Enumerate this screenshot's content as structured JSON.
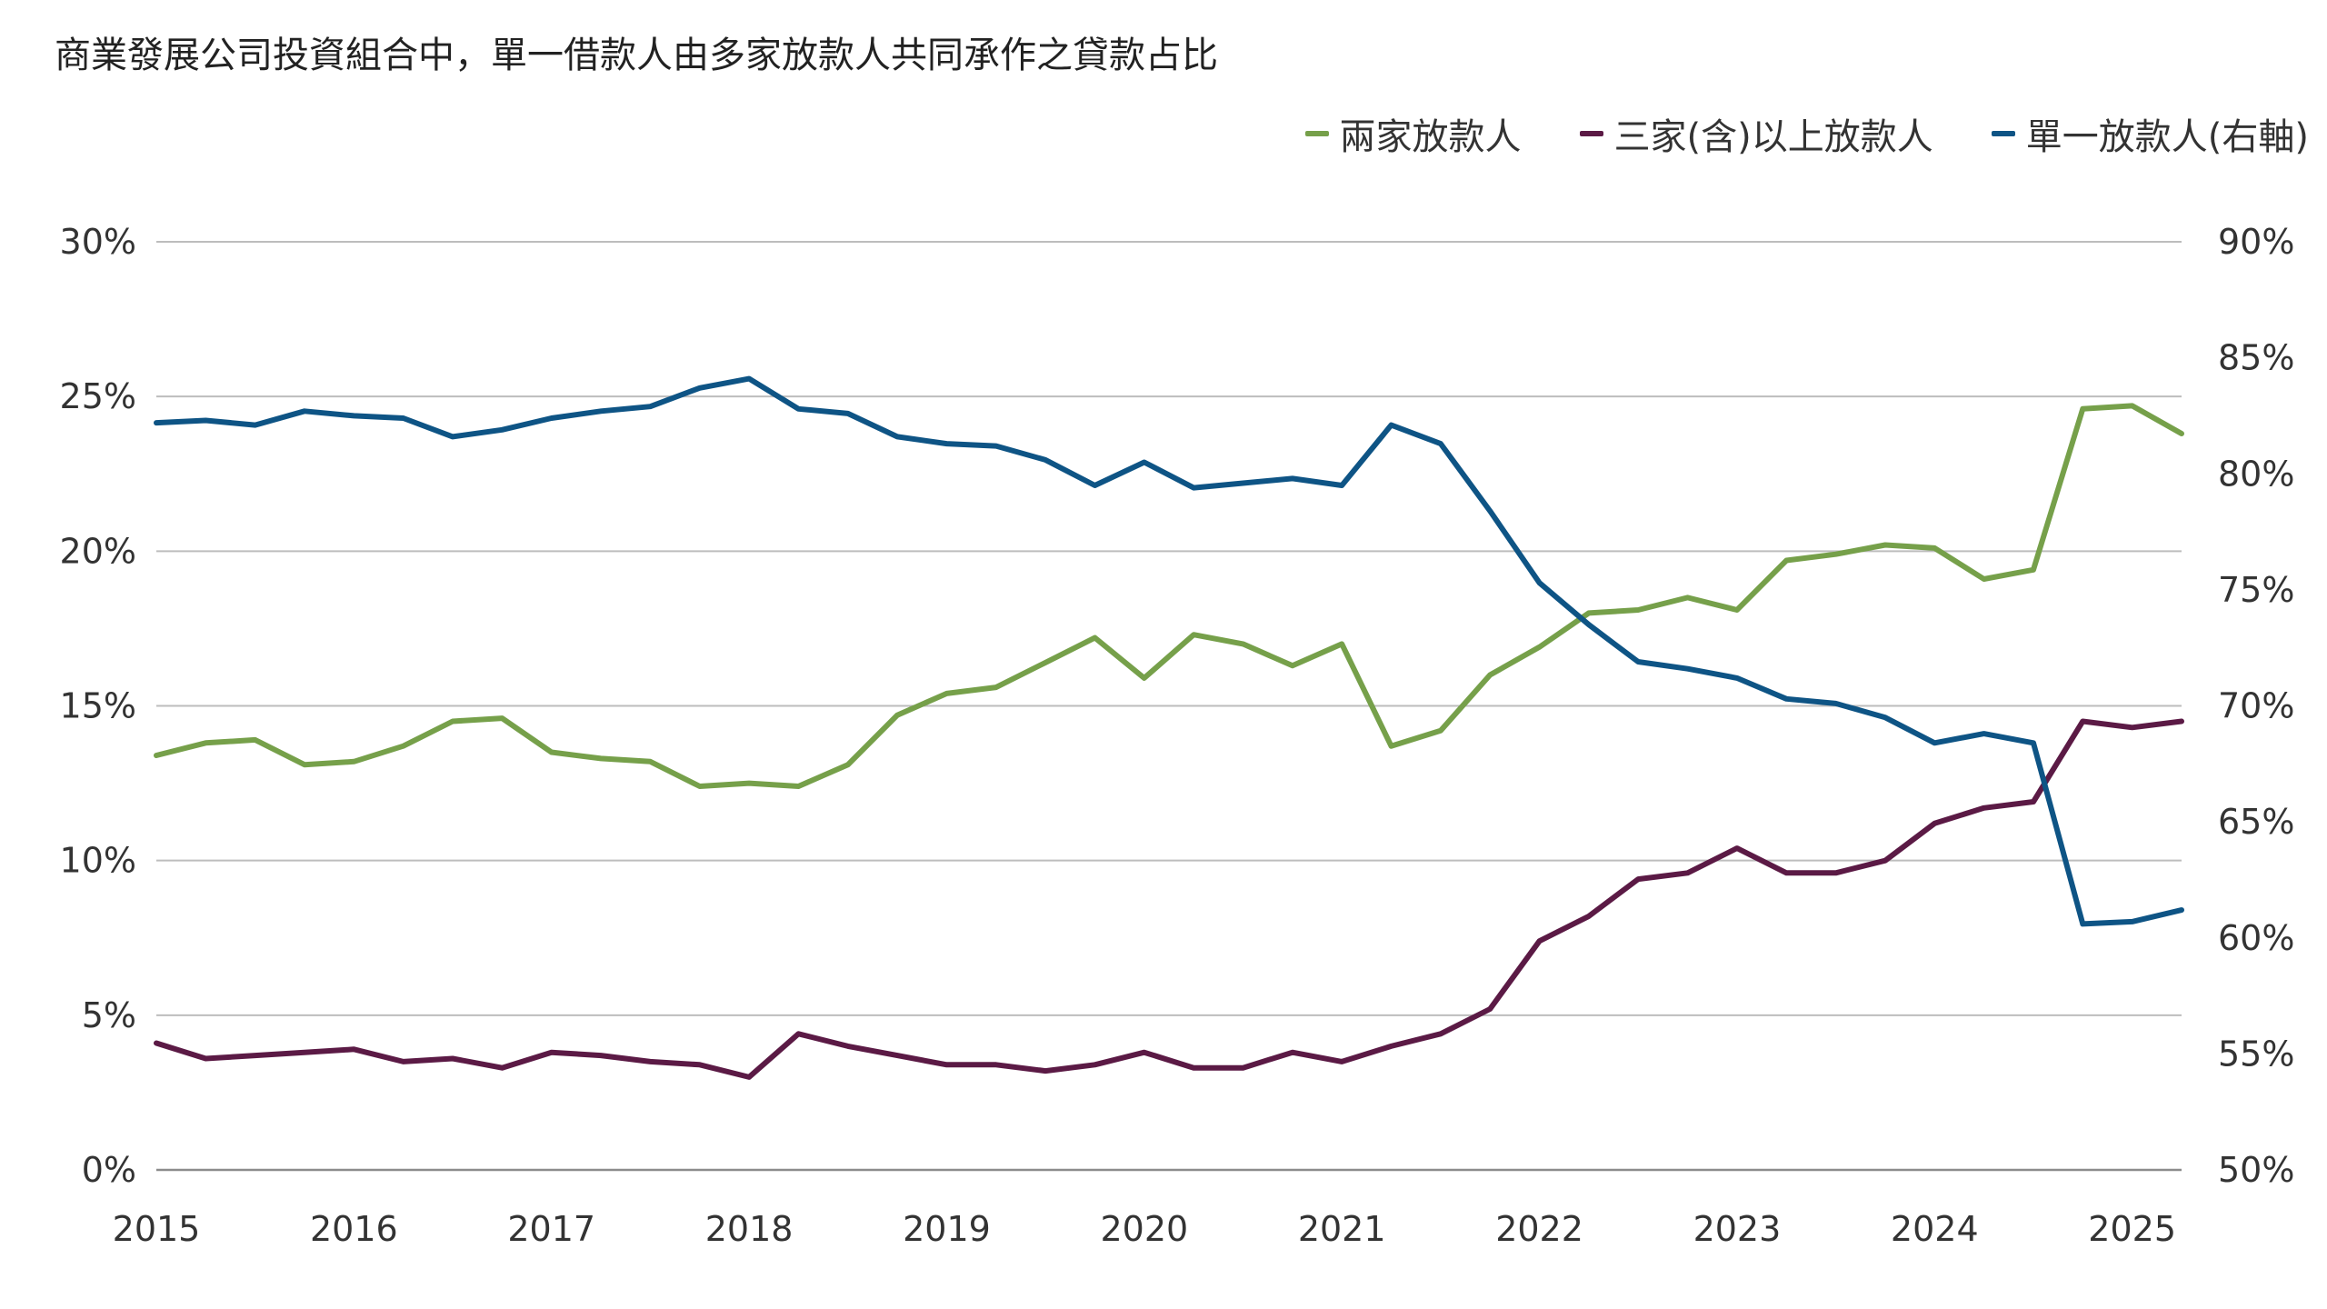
{
  "chart_data": {
    "type": "line",
    "title": "商業發展公司投資組合中，單一借款人由多家放款人共同承作之貸款占比",
    "y_left": {
      "ticks": [
        "0%",
        "5%",
        "10%",
        "15%",
        "20%",
        "25%",
        "30%"
      ],
      "range": [
        0,
        30
      ]
    },
    "y_right": {
      "ticks": [
        "50%",
        "55%",
        "60%",
        "65%",
        "70%",
        "75%",
        "80%",
        "85%",
        "90%"
      ],
      "range": [
        50,
        90
      ]
    },
    "x_ticks": [
      "2015",
      "2016",
      "2017",
      "2018",
      "2019",
      "2020",
      "2021",
      "2022",
      "2023",
      "2024",
      "2025"
    ],
    "x_range": [
      2015.0,
      2025.25
    ],
    "x": [
      2015.0,
      2015.25,
      2015.5,
      2015.75,
      2016.0,
      2016.25,
      2016.5,
      2016.75,
      2017.0,
      2017.25,
      2017.5,
      2017.75,
      2018.0,
      2018.25,
      2018.5,
      2018.75,
      2019.0,
      2019.25,
      2019.5,
      2019.75,
      2020.0,
      2020.25,
      2020.5,
      2020.75,
      2021.0,
      2021.25,
      2021.5,
      2021.75,
      2022.0,
      2022.25,
      2022.5,
      2022.75,
      2023.0,
      2023.25,
      2023.5,
      2023.75,
      2024.0,
      2024.25,
      2024.5,
      2024.75,
      2025.0,
      2025.25
    ],
    "grid": true,
    "legend_position": "top-right",
    "series": [
      {
        "name": "兩家放款人",
        "axis": "left",
        "color": "#76a04a",
        "values": [
          13.4,
          13.8,
          13.9,
          13.1,
          13.2,
          13.7,
          14.5,
          14.6,
          13.5,
          13.3,
          13.2,
          12.4,
          12.5,
          12.4,
          13.1,
          14.7,
          15.4,
          15.6,
          16.4,
          17.2,
          15.9,
          17.3,
          17.0,
          16.3,
          17.0,
          13.7,
          14.2,
          16.0,
          16.9,
          18.0,
          18.1,
          18.5,
          18.1,
          19.7,
          19.9,
          20.2,
          20.1,
          19.1,
          19.4,
          24.6,
          24.7,
          23.8
        ]
      },
      {
        "name": "三家(含)以上放款人",
        "axis": "left",
        "color": "#5b1a45",
        "values": [
          4.1,
          3.6,
          3.7,
          3.8,
          3.9,
          3.5,
          3.6,
          3.3,
          3.8,
          3.7,
          3.5,
          3.4,
          3.0,
          4.4,
          4.0,
          3.7,
          3.4,
          3.4,
          3.2,
          3.4,
          3.8,
          3.3,
          3.3,
          3.8,
          3.5,
          4.0,
          4.4,
          5.2,
          7.4,
          8.2,
          9.4,
          9.6,
          10.4,
          9.6,
          9.6,
          10.0,
          11.2,
          11.7,
          11.9,
          14.5,
          14.3,
          14.5
        ]
      },
      {
        "name": "單一放款人(右軸)",
        "axis": "right",
        "color": "#0e5485",
        "values": [
          82.2,
          82.3,
          82.1,
          82.7,
          82.5,
          82.4,
          81.6,
          81.9,
          82.4,
          82.7,
          82.9,
          83.7,
          84.1,
          82.8,
          82.6,
          81.6,
          81.3,
          81.2,
          80.6,
          79.5,
          80.5,
          79.4,
          79.6,
          79.8,
          79.5,
          82.1,
          81.3,
          78.4,
          75.3,
          73.5,
          71.9,
          71.6,
          71.2,
          70.3,
          70.1,
          69.5,
          68.4,
          68.8,
          68.4,
          60.6,
          60.7,
          61.2
        ]
      }
    ]
  }
}
